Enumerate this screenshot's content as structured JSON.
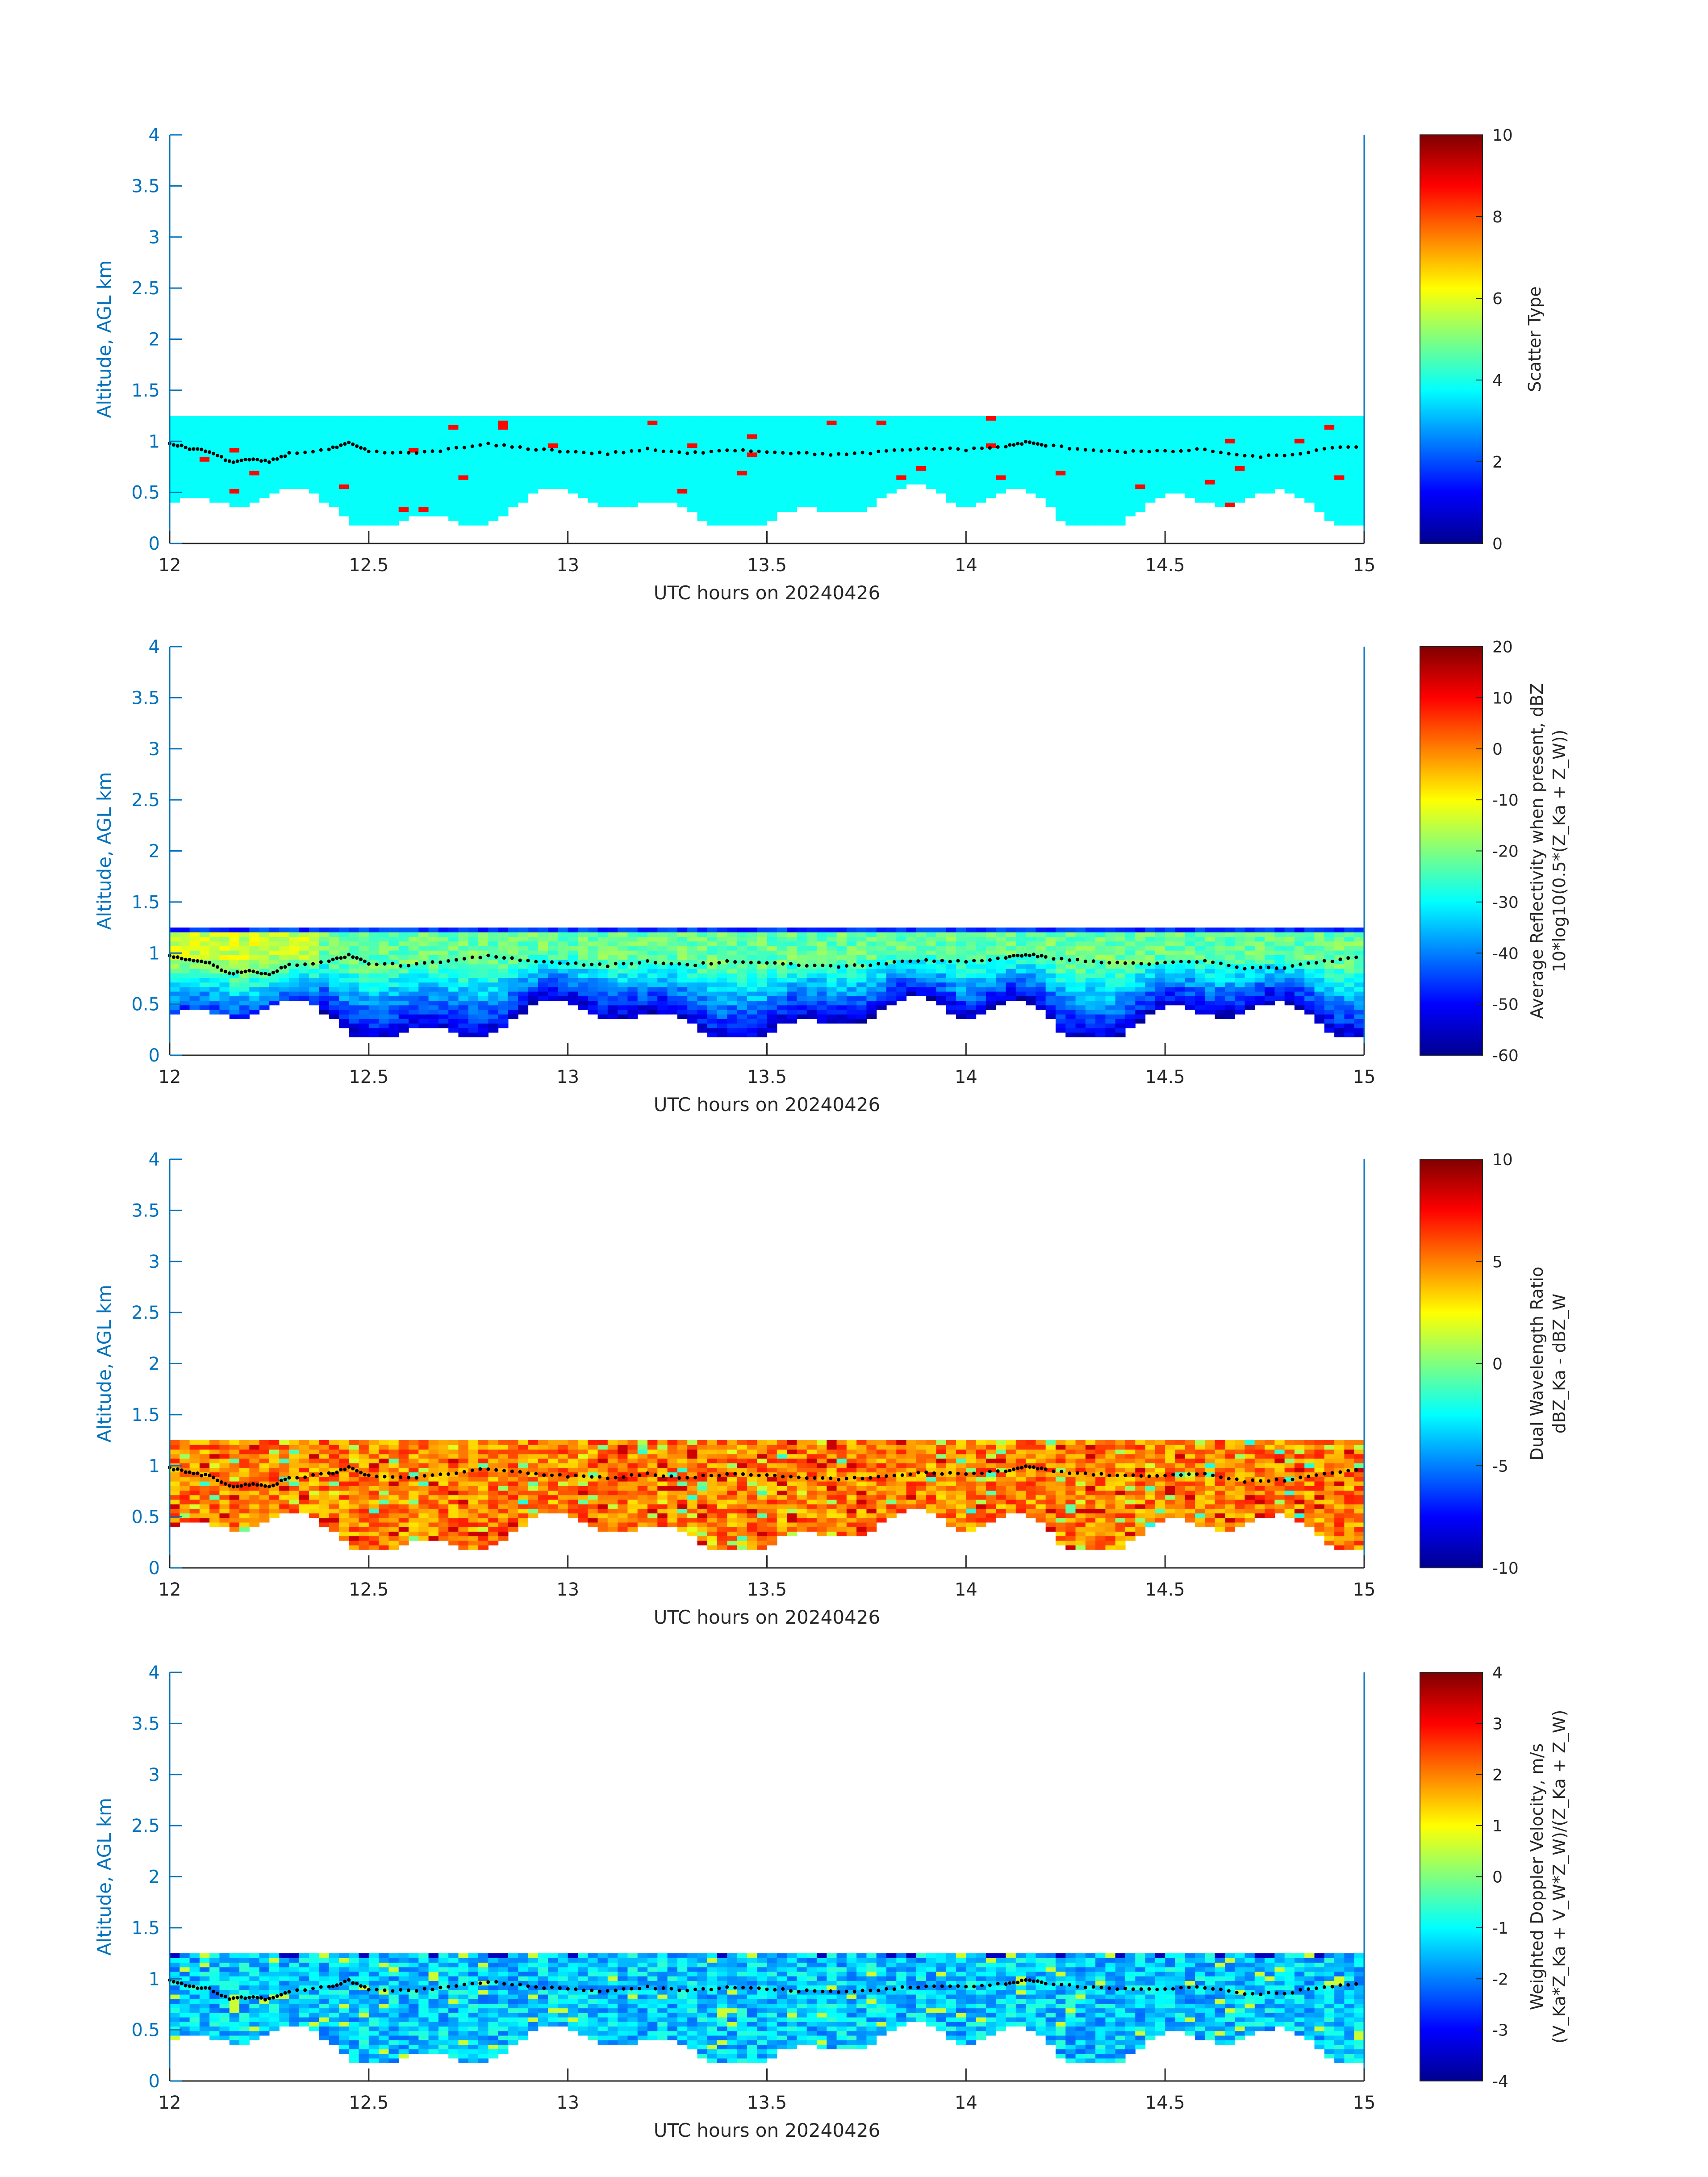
{
  "figure": {
    "date_label": "UTC hours on 20240426"
  },
  "chart_data": [
    {
      "type": "heatmap",
      "panel": "scatter-type",
      "xlabel": "UTC hours on 20240426",
      "ylabel": "Altitude, AGL km",
      "xlim": [
        12,
        15
      ],
      "ylim": [
        0,
        4
      ],
      "x_ticks": [
        "12",
        "12.5",
        "13",
        "13.5",
        "14",
        "14.5",
        "15"
      ],
      "y_ticks": [
        "0",
        "0.5",
        "1",
        "1.5",
        "2",
        "2.5",
        "3",
        "3.5",
        "4"
      ],
      "colorbar": {
        "label_lines": [
          "Scatter Type"
        ],
        "clim": [
          0,
          10
        ],
        "ticks": [
          "0",
          "2",
          "4",
          "6",
          "8",
          "10"
        ],
        "colormap": "jet"
      },
      "field": "constant",
      "dominant_value": 3.8,
      "outlier_value": 8.7
    },
    {
      "type": "heatmap",
      "panel": "reflectivity",
      "xlabel": "UTC hours on 20240426",
      "ylabel": "Altitude, AGL km",
      "xlim": [
        12,
        15
      ],
      "ylim": [
        0,
        4
      ],
      "x_ticks": [
        "12",
        "12.5",
        "13",
        "13.5",
        "14",
        "14.5",
        "15"
      ],
      "y_ticks": [
        "0",
        "0.5",
        "1",
        "1.5",
        "2",
        "2.5",
        "3",
        "3.5",
        "4"
      ],
      "colorbar": {
        "label_lines": [
          "Average Reflectivity when present, dBZ",
          "10*log10(0.5*(Z_Ka + Z_W))"
        ],
        "clim": [
          -60,
          20
        ],
        "ticks": [
          "-60",
          "-50",
          "-40",
          "-30",
          "-20",
          "-10",
          "0",
          "10",
          "20"
        ],
        "colormap": "jet"
      },
      "field": "reflectivity",
      "value_range_observed": [
        -55,
        -12
      ]
    },
    {
      "type": "heatmap",
      "panel": "dwr",
      "xlabel": "UTC hours on 20240426",
      "ylabel": "Altitude, AGL km",
      "xlim": [
        12,
        15
      ],
      "ylim": [
        0,
        4
      ],
      "x_ticks": [
        "12",
        "12.5",
        "13",
        "13.5",
        "14",
        "14.5",
        "15"
      ],
      "y_ticks": [
        "0",
        "0.5",
        "1",
        "1.5",
        "2",
        "2.5",
        "3",
        "3.5",
        "4"
      ],
      "colorbar": {
        "label_lines": [
          "Dual Wavelength Ratio",
          "dBZ_Ka - dBZ_W"
        ],
        "clim": [
          -10,
          10
        ],
        "ticks": [
          "-10",
          "-5",
          "0",
          "5",
          "10"
        ],
        "colormap": "jet"
      },
      "field": "dwr",
      "value_range_observed": [
        -3,
        9
      ]
    },
    {
      "type": "heatmap",
      "panel": "doppler",
      "xlabel": "UTC hours on 20240426",
      "ylabel": "Altitude, AGL km",
      "xlim": [
        12,
        15
      ],
      "ylim": [
        0,
        4
      ],
      "x_ticks": [
        "12",
        "12.5",
        "13",
        "13.5",
        "14",
        "14.5",
        "15"
      ],
      "y_ticks": [
        "0",
        "0.5",
        "1",
        "1.5",
        "2",
        "2.5",
        "3",
        "3.5",
        "4"
      ],
      "colorbar": {
        "label_lines": [
          "Weighted Doppler Velocity, m/s",
          "(V_Ka*Z_Ka + V_W*Z_W)/(Z_Ka + Z_W)"
        ],
        "clim": [
          -4,
          4
        ],
        "ticks": [
          "-4",
          "-3",
          "-2",
          "-1",
          "0",
          "1",
          "2",
          "3",
          "4"
        ],
        "colormap": "jet"
      },
      "field": "doppler",
      "value_range_observed": [
        -3,
        1
      ]
    }
  ],
  "cloud_layer": {
    "top_km": 1.25,
    "base_km_range": [
      0.2,
      0.6
    ],
    "cloud_base_height_dots_km": [
      [
        12.0,
        0.98
      ],
      [
        12.05,
        0.93
      ],
      [
        12.1,
        0.9
      ],
      [
        12.15,
        0.8
      ],
      [
        12.2,
        0.82
      ],
      [
        12.25,
        0.8
      ],
      [
        12.3,
        0.88
      ],
      [
        12.4,
        0.92
      ],
      [
        12.45,
        0.98
      ],
      [
        12.5,
        0.9
      ],
      [
        12.6,
        0.88
      ],
      [
        12.7,
        0.92
      ],
      [
        12.8,
        0.97
      ],
      [
        12.9,
        0.93
      ],
      [
        13.0,
        0.9
      ],
      [
        13.1,
        0.88
      ],
      [
        13.2,
        0.92
      ],
      [
        13.3,
        0.88
      ],
      [
        13.4,
        0.92
      ],
      [
        13.5,
        0.9
      ],
      [
        13.6,
        0.88
      ],
      [
        13.7,
        0.87
      ],
      [
        13.8,
        0.9
      ],
      [
        13.9,
        0.93
      ],
      [
        14.0,
        0.92
      ],
      [
        14.1,
        0.95
      ],
      [
        14.15,
        0.99
      ],
      [
        14.2,
        0.96
      ],
      [
        14.3,
        0.92
      ],
      [
        14.4,
        0.9
      ],
      [
        14.5,
        0.9
      ],
      [
        14.6,
        0.92
      ],
      [
        14.7,
        0.85
      ],
      [
        14.8,
        0.86
      ],
      [
        14.9,
        0.92
      ],
      [
        15.0,
        0.96
      ]
    ]
  }
}
